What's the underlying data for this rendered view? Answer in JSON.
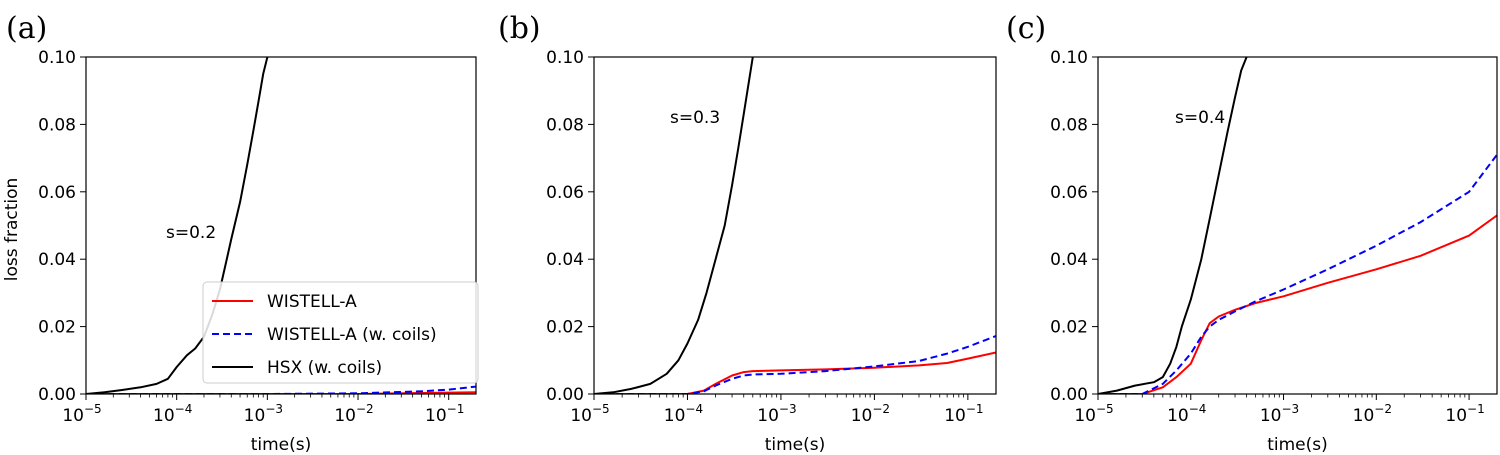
{
  "chart_data": [
    {
      "panel_label": "(a)",
      "type": "line",
      "annotation": "s=0.2",
      "xlabel": "time(s)",
      "ylabel": "loss fraction",
      "xscale": "log",
      "xlim": [
        1e-05,
        0.2
      ],
      "ylim": [
        0,
        0.1
      ],
      "xtick_labels": [
        {
          "value": 1e-05,
          "base": "10",
          "exp": "−5"
        },
        {
          "value": 0.0001,
          "base": "10",
          "exp": "−4"
        },
        {
          "value": 0.001,
          "base": "10",
          "exp": "−3"
        },
        {
          "value": 0.01,
          "base": "10",
          "exp": "−2"
        },
        {
          "value": 0.1,
          "base": "10",
          "exp": "−1"
        }
      ],
      "ytick_labels": [
        "0.00",
        "0.02",
        "0.04",
        "0.06",
        "0.08",
        "0.10"
      ],
      "yticks": [
        0,
        0.02,
        0.04,
        0.06,
        0.08,
        0.1
      ],
      "legend": {
        "placement": "lower-right",
        "entries": [
          "WISTELL-A",
          "WISTELL-A (w. coils)",
          "HSX (w. coils)"
        ]
      },
      "series": [
        {
          "name": "WISTELL-A",
          "color": "#ff0000",
          "dash": "solid",
          "points": [
            [
              1e-05,
              0
            ],
            [
              0.0001,
              0
            ],
            [
              0.001,
              0
            ],
            [
              0.01,
              0
            ],
            [
              0.05,
              0.0003
            ],
            [
              0.2,
              0.0005
            ]
          ]
        },
        {
          "name": "WISTELL-A (w. coils)",
          "color": "#0000ff",
          "dash": "dashed",
          "points": [
            [
              1e-05,
              0
            ],
            [
              0.001,
              0
            ],
            [
              0.01,
              0.0002
            ],
            [
              0.05,
              0.0008
            ],
            [
              0.1,
              0.0013
            ],
            [
              0.2,
              0.0022
            ]
          ]
        },
        {
          "name": "HSX (w. coils)",
          "color": "#000000",
          "dash": "solid",
          "points": [
            [
              1e-05,
              0
            ],
            [
              1.6e-05,
              0.0005
            ],
            [
              2.5e-05,
              0.0012
            ],
            [
              4e-05,
              0.002
            ],
            [
              6e-05,
              0.003
            ],
            [
              8e-05,
              0.0045
            ],
            [
              0.0001,
              0.008
            ],
            [
              0.00013,
              0.0115
            ],
            [
              0.00016,
              0.0135
            ],
            [
              0.0002,
              0.017
            ],
            [
              0.00025,
              0.024
            ],
            [
              0.0003,
              0.031
            ],
            [
              0.00035,
              0.039
            ],
            [
              0.0004,
              0.046
            ],
            [
              0.0005,
              0.057
            ],
            [
              0.0006,
              0.068
            ],
            [
              0.0007,
              0.078
            ],
            [
              0.0008,
              0.087
            ],
            [
              0.0009,
              0.095
            ],
            [
              0.001,
              0.1
            ]
          ]
        }
      ]
    },
    {
      "panel_label": "(b)",
      "type": "line",
      "annotation": "s=0.3",
      "xlabel": "time(s)",
      "ylabel": "",
      "xscale": "log",
      "xlim": [
        1e-05,
        0.2
      ],
      "ylim": [
        0,
        0.1
      ],
      "xtick_labels": [
        {
          "value": 1e-05,
          "base": "10",
          "exp": "−5"
        },
        {
          "value": 0.0001,
          "base": "10",
          "exp": "−4"
        },
        {
          "value": 0.001,
          "base": "10",
          "exp": "−3"
        },
        {
          "value": 0.01,
          "base": "10",
          "exp": "−2"
        },
        {
          "value": 0.1,
          "base": "10",
          "exp": "−1"
        }
      ],
      "ytick_labels": [
        "0.00",
        "0.02",
        "0.04",
        "0.06",
        "0.08",
        "0.10"
      ],
      "yticks": [
        0,
        0.02,
        0.04,
        0.06,
        0.08,
        0.1
      ],
      "series": [
        {
          "name": "WISTELL-A",
          "color": "#ff0000",
          "dash": "solid",
          "points": [
            [
              1e-05,
              0
            ],
            [
              0.0001,
              0
            ],
            [
              0.00015,
              0.001
            ],
            [
              0.0002,
              0.003
            ],
            [
              0.0003,
              0.0055
            ],
            [
              0.0004,
              0.0065
            ],
            [
              0.0005,
              0.0068
            ],
            [
              0.001,
              0.007
            ],
            [
              0.003,
              0.0073
            ],
            [
              0.01,
              0.0078
            ],
            [
              0.03,
              0.0085
            ],
            [
              0.06,
              0.0092
            ],
            [
              0.1,
              0.0105
            ],
            [
              0.2,
              0.0123
            ]
          ]
        },
        {
          "name": "WISTELL-A (w. coils)",
          "color": "#0000ff",
          "dash": "dashed",
          "points": [
            [
              1e-05,
              0
            ],
            [
              0.0001,
              0
            ],
            [
              0.00015,
              0.0008
            ],
            [
              0.0002,
              0.0025
            ],
            [
              0.0003,
              0.0045
            ],
            [
              0.0004,
              0.0055
            ],
            [
              0.0005,
              0.0058
            ],
            [
              0.001,
              0.006
            ],
            [
              0.003,
              0.0068
            ],
            [
              0.01,
              0.0082
            ],
            [
              0.03,
              0.0098
            ],
            [
              0.06,
              0.012
            ],
            [
              0.1,
              0.014
            ],
            [
              0.2,
              0.0172
            ]
          ]
        },
        {
          "name": "HSX (w. coils)",
          "color": "#000000",
          "dash": "solid",
          "points": [
            [
              1e-05,
              0
            ],
            [
              1.6e-05,
              0.0005
            ],
            [
              2.5e-05,
              0.0015
            ],
            [
              4e-05,
              0.003
            ],
            [
              6e-05,
              0.006
            ],
            [
              8e-05,
              0.01
            ],
            [
              0.0001,
              0.015
            ],
            [
              0.00013,
              0.022
            ],
            [
              0.00016,
              0.03
            ],
            [
              0.0002,
              0.04
            ],
            [
              0.00025,
              0.05
            ],
            [
              0.0003,
              0.062
            ],
            [
              0.00035,
              0.073
            ],
            [
              0.0004,
              0.083
            ],
            [
              0.0005,
              0.1
            ]
          ]
        }
      ]
    },
    {
      "panel_label": "(c)",
      "type": "line",
      "annotation": "s=0.4",
      "xlabel": "time(s)",
      "ylabel": "",
      "xscale": "log",
      "xlim": [
        1e-05,
        0.2
      ],
      "ylim": [
        0,
        0.1
      ],
      "xtick_labels": [
        {
          "value": 1e-05,
          "base": "10",
          "exp": "−5"
        },
        {
          "value": 0.0001,
          "base": "10",
          "exp": "−4"
        },
        {
          "value": 0.001,
          "base": "10",
          "exp": "−3"
        },
        {
          "value": 0.01,
          "base": "10",
          "exp": "−2"
        },
        {
          "value": 0.1,
          "base": "10",
          "exp": "−1"
        }
      ],
      "ytick_labels": [
        "0.00",
        "0.02",
        "0.04",
        "0.06",
        "0.08",
        "0.10"
      ],
      "yticks": [
        0,
        0.02,
        0.04,
        0.06,
        0.08,
        0.1
      ],
      "series": [
        {
          "name": "WISTELL-A",
          "color": "#ff0000",
          "dash": "solid",
          "points": [
            [
              1e-05,
              0
            ],
            [
              3e-05,
              0
            ],
            [
              5e-05,
              0.002
            ],
            [
              7e-05,
              0.005
            ],
            [
              0.0001,
              0.009
            ],
            [
              0.00013,
              0.016
            ],
            [
              0.00016,
              0.021
            ],
            [
              0.0002,
              0.023
            ],
            [
              0.0003,
              0.025
            ],
            [
              0.0005,
              0.027
            ],
            [
              0.001,
              0.029
            ],
            [
              0.003,
              0.033
            ],
            [
              0.01,
              0.037
            ],
            [
              0.03,
              0.041
            ],
            [
              0.1,
              0.047
            ],
            [
              0.2,
              0.053
            ]
          ]
        },
        {
          "name": "WISTELL-A (w. coils)",
          "color": "#0000ff",
          "dash": "dashed",
          "points": [
            [
              1e-05,
              0
            ],
            [
              3e-05,
              0
            ],
            [
              5e-05,
              0.003
            ],
            [
              7e-05,
              0.007
            ],
            [
              0.0001,
              0.012
            ],
            [
              0.00013,
              0.017
            ],
            [
              0.00016,
              0.02
            ],
            [
              0.0002,
              0.022
            ],
            [
              0.0003,
              0.0245
            ],
            [
              0.0005,
              0.0275
            ],
            [
              0.001,
              0.031
            ],
            [
              0.003,
              0.037
            ],
            [
              0.01,
              0.044
            ],
            [
              0.03,
              0.051
            ],
            [
              0.1,
              0.06
            ],
            [
              0.2,
              0.071
            ]
          ]
        },
        {
          "name": "HSX (w. coils)",
          "color": "#000000",
          "dash": "solid",
          "points": [
            [
              1e-05,
              0
            ],
            [
              1.6e-05,
              0.001
            ],
            [
              2.5e-05,
              0.0025
            ],
            [
              4e-05,
              0.0035
            ],
            [
              5e-05,
              0.005
            ],
            [
              6e-05,
              0.009
            ],
            [
              7e-05,
              0.014
            ],
            [
              8e-05,
              0.02
            ],
            [
              0.0001,
              0.028
            ],
            [
              0.00013,
              0.04
            ],
            [
              0.00016,
              0.052
            ],
            [
              0.0002,
              0.065
            ],
            [
              0.00025,
              0.078
            ],
            [
              0.0003,
              0.088
            ],
            [
              0.00035,
              0.096
            ],
            [
              0.0004,
              0.1
            ]
          ]
        }
      ]
    }
  ]
}
